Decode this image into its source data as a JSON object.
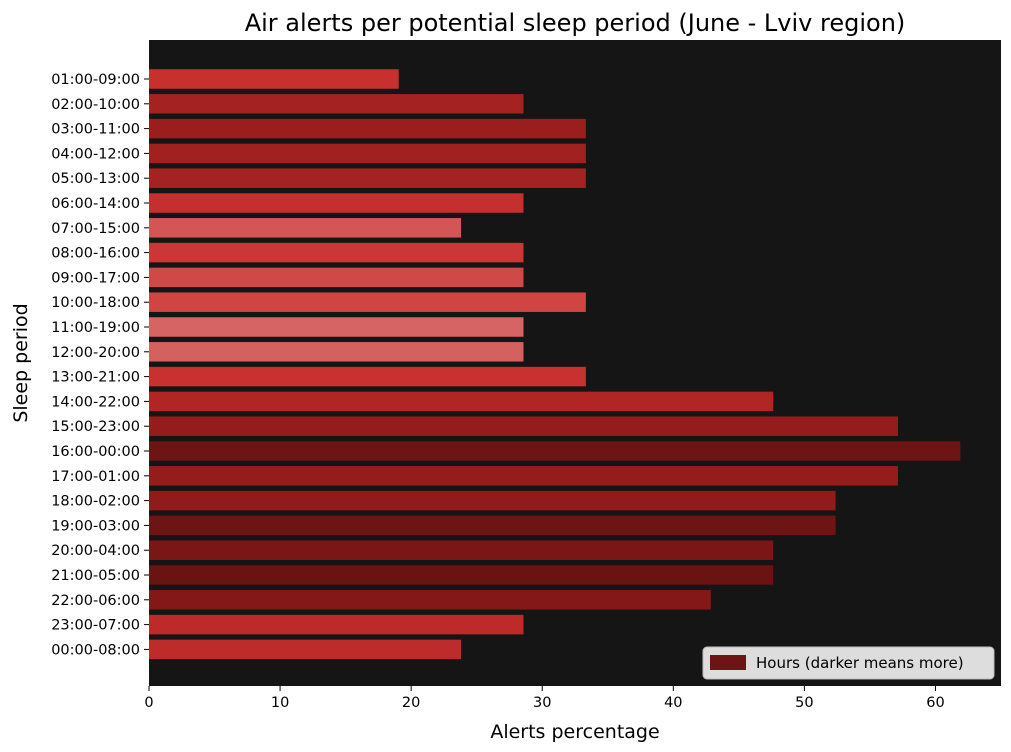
{
  "chart_data": {
    "type": "bar",
    "orientation": "horizontal",
    "title": "Air alerts per potential sleep period (June - Lviv region)",
    "xlabel": "Alerts percentage",
    "ylabel": "Sleep period",
    "xlim": [
      0,
      65
    ],
    "x_ticks": [
      0,
      10,
      20,
      30,
      40,
      50,
      60
    ],
    "background": "#151515",
    "grid": false,
    "legend": {
      "label": "Hours (darker means more)",
      "placement": "bottom-right",
      "swatch_color": "#6e1414"
    },
    "categories": [
      "01:00-09:00",
      "02:00-10:00",
      "03:00-11:00",
      "04:00-12:00",
      "05:00-13:00",
      "06:00-14:00",
      "07:00-15:00",
      "08:00-16:00",
      "09:00-17:00",
      "10:00-18:00",
      "11:00-19:00",
      "12:00-20:00",
      "13:00-21:00",
      "14:00-22:00",
      "15:00-23:00",
      "16:00-00:00",
      "17:00-01:00",
      "18:00-02:00",
      "19:00-03:00",
      "20:00-04:00",
      "21:00-05:00",
      "22:00-06:00",
      "23:00-07:00",
      "00:00-08:00"
    ],
    "values": [
      19.05,
      28.57,
      33.33,
      33.33,
      33.33,
      28.57,
      23.81,
      28.57,
      28.57,
      33.33,
      28.57,
      28.57,
      33.33,
      47.62,
      57.14,
      61.9,
      57.14,
      52.38,
      52.38,
      47.62,
      47.62,
      42.86,
      28.57,
      23.81
    ],
    "colors": [
      "#c8302f",
      "#a52222",
      "#9a1e1e",
      "#a12121",
      "#a42222",
      "#c42f2f",
      "#d45555",
      "#cb3737",
      "#d04848",
      "#d04444",
      "#d66464",
      "#d46060",
      "#c93030",
      "#b22525",
      "#951c1c",
      "#6e1414",
      "#951c1c",
      "#911b1b",
      "#6e1414",
      "#7b1616",
      "#6a1313",
      "#841818",
      "#bc2a2a",
      "#bd2b2b"
    ]
  }
}
